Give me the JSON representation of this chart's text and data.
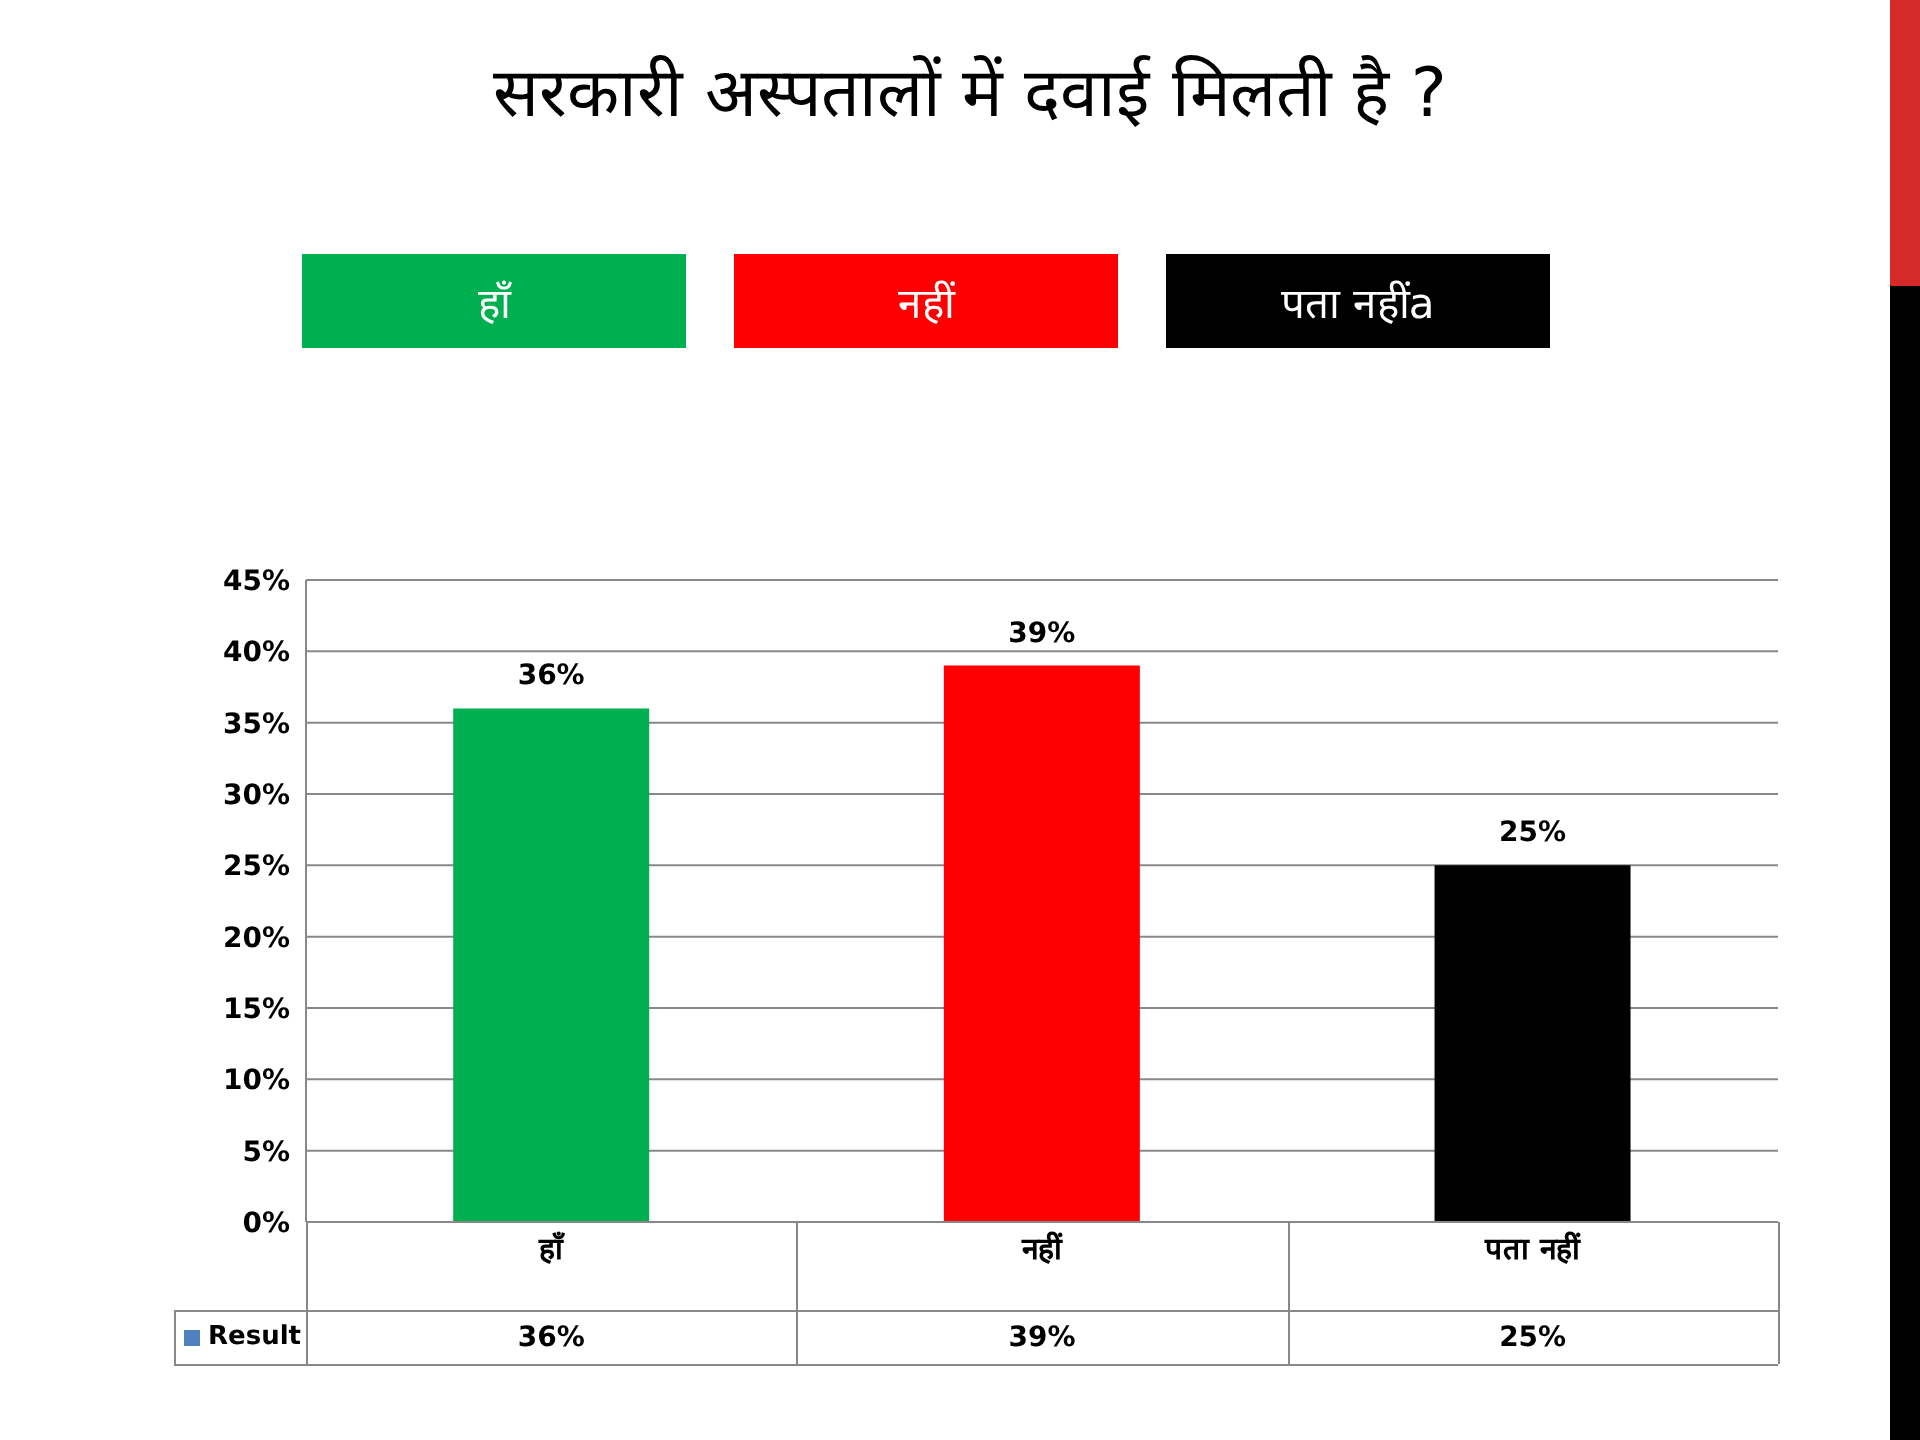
{
  "chart_data": {
    "type": "bar",
    "title": "सरकारी अस्पतालों में दवाई मिलती है ?",
    "categories": [
      "हाँ",
      "नहीं",
      "पता नहीं"
    ],
    "series": [
      {
        "name": "Result",
        "color": "#4f81bd",
        "colors": [
          "#00b050",
          "#ff0000",
          "#000000"
        ],
        "values": [
          36,
          39,
          25
        ],
        "value_labels": [
          "36%",
          "39%",
          "25%"
        ]
      }
    ],
    "ylim": [
      0,
      45
    ],
    "yticks": [
      {
        "value": 0,
        "label": "0%"
      },
      {
        "value": 5,
        "label": "5%"
      },
      {
        "value": 10,
        "label": "10%"
      },
      {
        "value": 15,
        "label": "15%"
      },
      {
        "value": 20,
        "label": "20%"
      },
      {
        "value": 25,
        "label": "25%"
      },
      {
        "value": 30,
        "label": "30%"
      },
      {
        "value": 35,
        "label": "35%"
      },
      {
        "value": 40,
        "label": "40%"
      },
      {
        "value": 45,
        "label": "45%"
      }
    ],
    "grid": "y",
    "legend": "bottom left",
    "annotations": [
      "हाँ",
      "नहीं",
      "पता नहींa"
    ]
  }
}
